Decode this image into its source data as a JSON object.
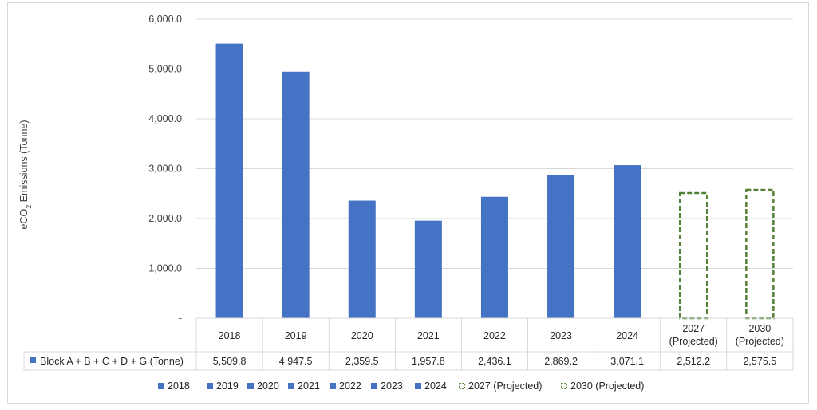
{
  "chart_data": {
    "type": "bar",
    "ylabel_main": "eCO",
    "ylabel_sub": "2",
    "ylabel_rest": " Emissions (Tonne)",
    "ylim": [
      0,
      6000
    ],
    "yticks": [
      "-",
      "1,000.0",
      "2,000.0",
      "3,000.0",
      "4,000.0",
      "5,000.0",
      "6,000.0"
    ],
    "grid": true,
    "categories": [
      {
        "line1": "2018",
        "line2": ""
      },
      {
        "line1": "2019",
        "line2": ""
      },
      {
        "line1": "2020",
        "line2": ""
      },
      {
        "line1": "2021",
        "line2": ""
      },
      {
        "line1": "2022",
        "line2": ""
      },
      {
        "line1": "2023",
        "line2": ""
      },
      {
        "line1": "2024",
        "line2": ""
      },
      {
        "line1": "2027",
        "line2": "(Projected)"
      },
      {
        "line1": "2030",
        "line2": "(Projected)"
      }
    ],
    "values": [
      5509.8,
      4947.5,
      2359.5,
      1957.8,
      2436.1,
      2869.2,
      3071.1,
      2512.2,
      2575.5
    ],
    "value_labels": [
      "5,509.8",
      "4,947.5",
      "2,359.5",
      "1,957.8",
      "2,436.1",
      "2,869.2",
      "3,071.1",
      "2,512.2",
      "2,575.5"
    ],
    "projected": [
      false,
      false,
      false,
      false,
      false,
      false,
      false,
      true,
      true
    ],
    "table_row_label": "Block A + B + C + D + G (Tonne)",
    "legend": [
      "2018",
      "2019",
      "2020",
      "2021",
      "2022",
      "2023",
      "2024",
      "2027 (Projected)",
      "2030 (Projected)"
    ],
    "legend_placement": "bottom",
    "colors": {
      "actual": "#4472c4",
      "projected": "#548235",
      "grid": "#d9d9d9"
    }
  }
}
